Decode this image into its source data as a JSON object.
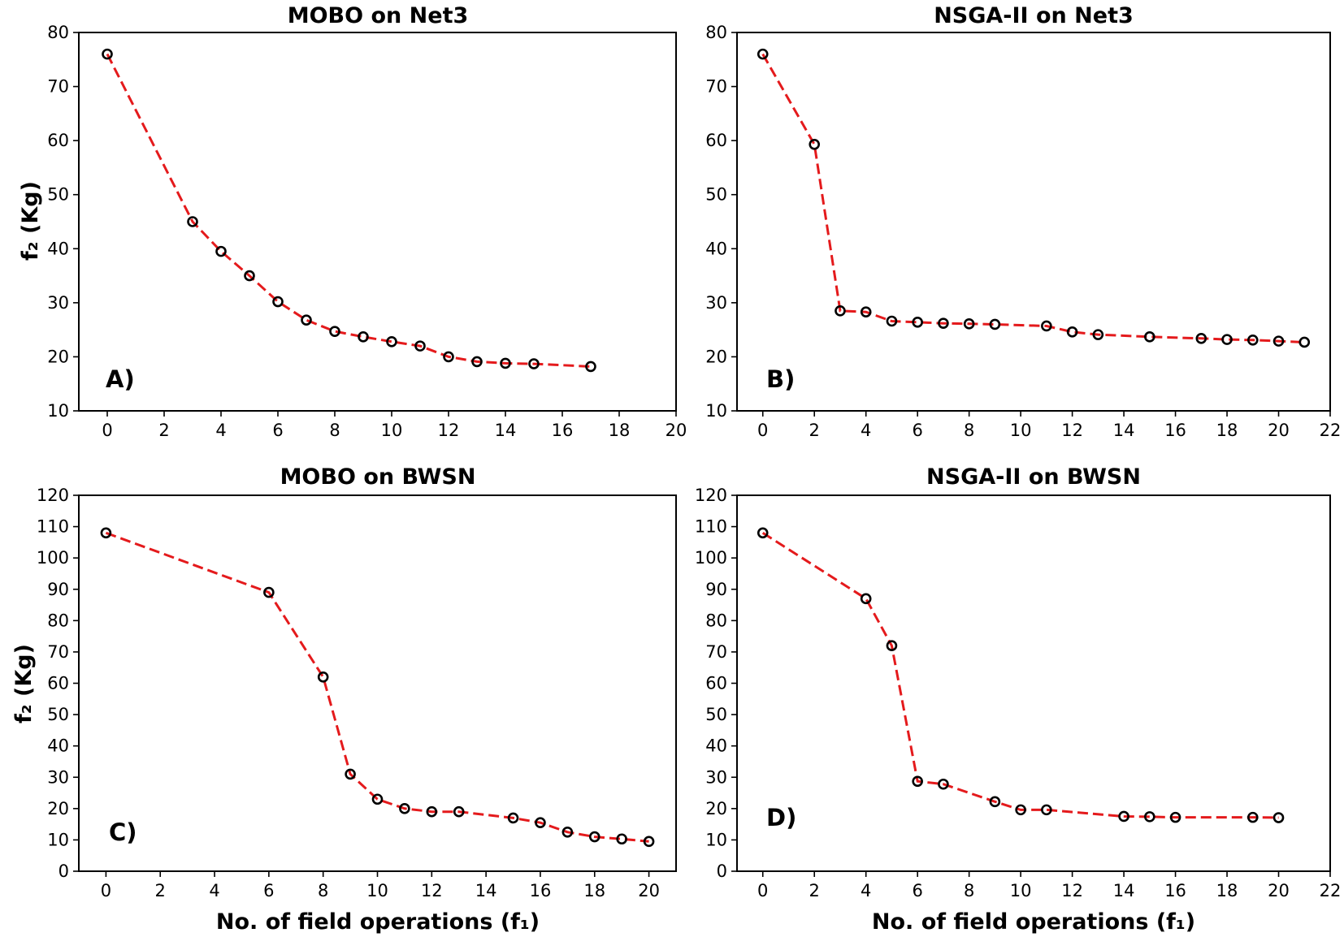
{
  "figure": {
    "line_color": "#e41a1c",
    "marker_color": "#000000",
    "ylabel": "f₂ (Kg)",
    "xlabel": "No. of field operations (f₁)"
  },
  "chart_data": [
    {
      "type": "line",
      "panel": "A)",
      "title": "MOBO on Net3",
      "xlabel": "",
      "ylabel": "f₂ (Kg)",
      "xlim": [
        -1,
        20
      ],
      "ylim": [
        10,
        80
      ],
      "xticks": [
        0,
        2,
        4,
        6,
        8,
        10,
        12,
        14,
        16,
        18,
        20
      ],
      "yticks": [
        10,
        20,
        30,
        40,
        50,
        60,
        70,
        80
      ],
      "x": [
        0,
        3,
        4,
        5,
        6,
        7,
        8,
        9,
        10,
        11,
        12,
        13,
        14,
        15,
        17
      ],
      "y": [
        76,
        45,
        39.5,
        35,
        30.2,
        26.8,
        24.7,
        23.7,
        22.8,
        22,
        20,
        19.1,
        18.8,
        18.7,
        18.2
      ]
    },
    {
      "type": "line",
      "panel": "B)",
      "title": "NSGA-II on Net3",
      "xlabel": "",
      "ylabel": "",
      "xlim": [
        -1,
        22
      ],
      "ylim": [
        10,
        80
      ],
      "xticks": [
        0,
        2,
        4,
        6,
        8,
        10,
        12,
        14,
        16,
        18,
        20,
        22
      ],
      "yticks": [
        10,
        20,
        30,
        40,
        50,
        60,
        70,
        80
      ],
      "x": [
        0,
        2,
        3,
        4,
        5,
        6,
        7,
        8,
        9,
        11,
        12,
        13,
        15,
        17,
        18,
        19,
        20,
        21
      ],
      "y": [
        76,
        59.3,
        28.5,
        28.3,
        26.6,
        26.4,
        26.2,
        26.1,
        26,
        25.7,
        24.6,
        24.1,
        23.7,
        23.4,
        23.2,
        23.1,
        22.9,
        22.7
      ]
    },
    {
      "type": "line",
      "panel": "C)",
      "title": "MOBO on BWSN",
      "xlabel": "No. of field operations (f₁)",
      "ylabel": "f₂ (Kg)",
      "xlim": [
        -1,
        21
      ],
      "ylim": [
        0,
        120
      ],
      "xticks": [
        0,
        2,
        4,
        6,
        8,
        10,
        12,
        14,
        16,
        18,
        20
      ],
      "yticks": [
        0,
        10,
        20,
        30,
        40,
        50,
        60,
        70,
        80,
        90,
        100,
        110,
        120
      ],
      "x": [
        0,
        6,
        8,
        9,
        10,
        11,
        12,
        13,
        15,
        16,
        17,
        18,
        19,
        20
      ],
      "y": [
        108,
        89,
        62,
        31,
        23,
        20,
        19,
        19,
        17,
        15.5,
        12.5,
        11,
        10.3,
        9.5
      ]
    },
    {
      "type": "line",
      "panel": "D)",
      "title": "NSGA-II on BWSN",
      "xlabel": "No. of field operations (f₁)",
      "ylabel": "",
      "xlim": [
        -1,
        22
      ],
      "ylim": [
        0,
        120
      ],
      "xticks": [
        0,
        2,
        4,
        6,
        8,
        10,
        12,
        14,
        16,
        18,
        20,
        22
      ],
      "yticks": [
        0,
        10,
        20,
        30,
        40,
        50,
        60,
        70,
        80,
        90,
        100,
        110,
        120
      ],
      "x": [
        0,
        4,
        5,
        6,
        7,
        9,
        10,
        11,
        14,
        15,
        16,
        19,
        20
      ],
      "y": [
        108,
        87,
        72,
        28.7,
        27.8,
        22.2,
        19.6,
        19.6,
        17.5,
        17.4,
        17.2,
        17.2,
        17.1
      ]
    }
  ]
}
